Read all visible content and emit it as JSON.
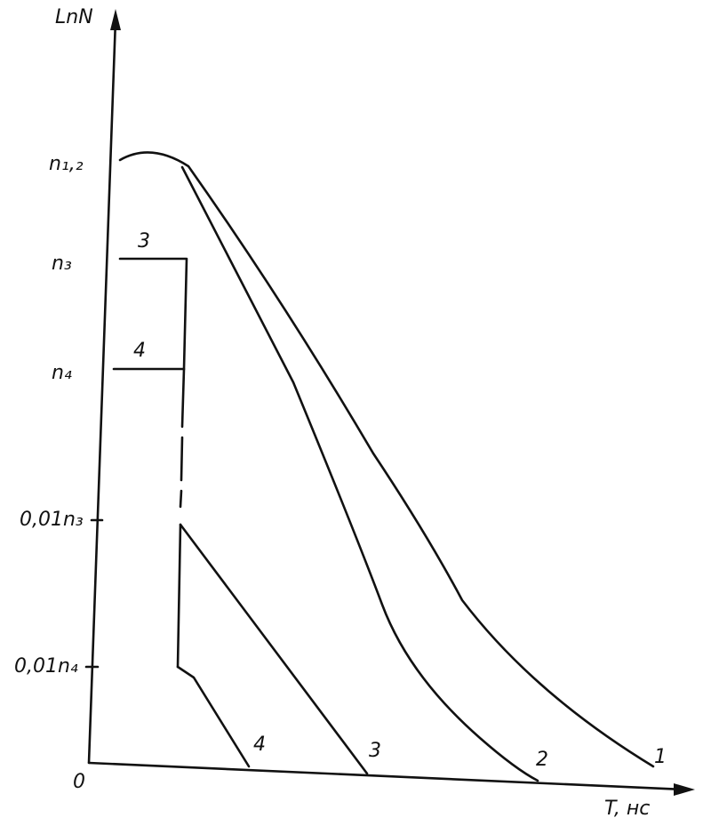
{
  "axes": {
    "y_label": "LnN",
    "x_label": "T, нс",
    "origin": "0"
  },
  "y_levels": [
    "n₁,₂",
    "n₃",
    "n₄",
    "0,01n₃",
    "0,01n₄"
  ],
  "level_labels": [
    "3",
    "4"
  ],
  "curve_labels": [
    "1",
    "2",
    "3",
    "4"
  ]
}
